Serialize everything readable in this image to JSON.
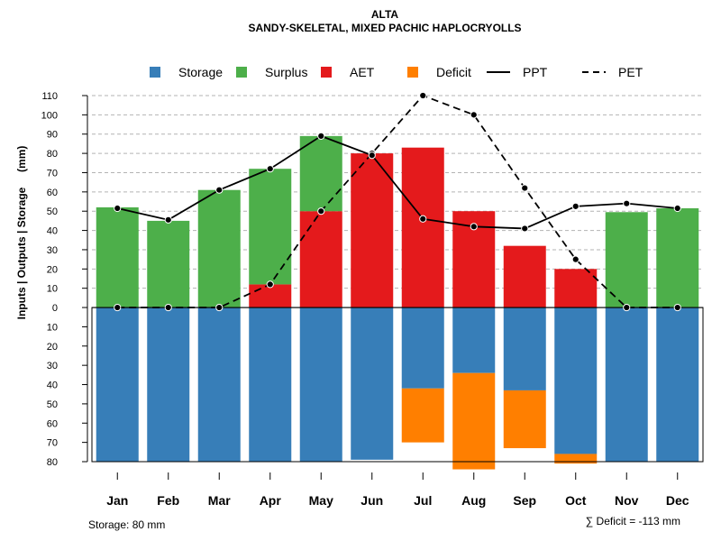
{
  "chart_data": {
    "type": "bar",
    "title": "ALTA",
    "subtitle": "SANDY-SKELETAL, MIXED PACHIC HAPLOCRYOLLS",
    "ylabel": "Inputs | Outputs | Storage     (mm)",
    "ylim": [
      -80,
      110
    ],
    "yticks": [
      110,
      100,
      90,
      80,
      70,
      60,
      50,
      40,
      30,
      20,
      10,
      0,
      -10,
      -20,
      -30,
      -40,
      -50,
      -60,
      -70,
      -80
    ],
    "ytick_labels": [
      "110",
      "100",
      "90",
      "80",
      "70",
      "60",
      "50",
      "40",
      "30",
      "20",
      "10",
      "0",
      "10",
      "20",
      "30",
      "40",
      "50",
      "60",
      "70",
      "80"
    ],
    "categories": [
      "Jan",
      "Feb",
      "Mar",
      "Apr",
      "May",
      "Jun",
      "Jul",
      "Aug",
      "Sep",
      "Oct",
      "Nov",
      "Dec"
    ],
    "legend": [
      {
        "label": "Storage",
        "kind": "box",
        "color": "#377eb8"
      },
      {
        "label": "Surplus",
        "kind": "box",
        "color": "#4daf4a"
      },
      {
        "label": "AET",
        "kind": "box",
        "color": "#e41a1c"
      },
      {
        "label": "Deficit",
        "kind": "box",
        "color": "#ff7f00"
      },
      {
        "label": "PPT",
        "kind": "solid",
        "color": "#000000"
      },
      {
        "label": "PET",
        "kind": "dashed",
        "color": "#000000"
      }
    ],
    "series": {
      "storage": [
        80,
        80,
        80,
        80,
        80,
        79,
        42,
        34,
        43,
        76,
        80,
        80
      ],
      "deficit": [
        0,
        0,
        0,
        0,
        0,
        0,
        28,
        50,
        30,
        5,
        0,
        0
      ],
      "aet": [
        0,
        0,
        0,
        12,
        50,
        80,
        83,
        50,
        32,
        20,
        0,
        0
      ],
      "surplus": [
        52,
        45,
        61,
        60,
        39,
        0,
        0,
        0,
        0,
        0,
        49.5,
        51.5
      ],
      "ppt": [
        51.5,
        45.5,
        61,
        72,
        89,
        79,
        46,
        42,
        41,
        52.5,
        54,
        51.5
      ],
      "pet": [
        0,
        0,
        0,
        12,
        50,
        80,
        110,
        100,
        62,
        25,
        0,
        0
      ]
    },
    "colors": {
      "storage": "#377eb8",
      "surplus": "#4daf4a",
      "aet": "#e41a1c",
      "deficit": "#ff7f00",
      "grid": "#b3b3b3"
    },
    "footer_left": "Storage: 80 mm",
    "footer_right": "∑ Deficit = -113 mm"
  }
}
